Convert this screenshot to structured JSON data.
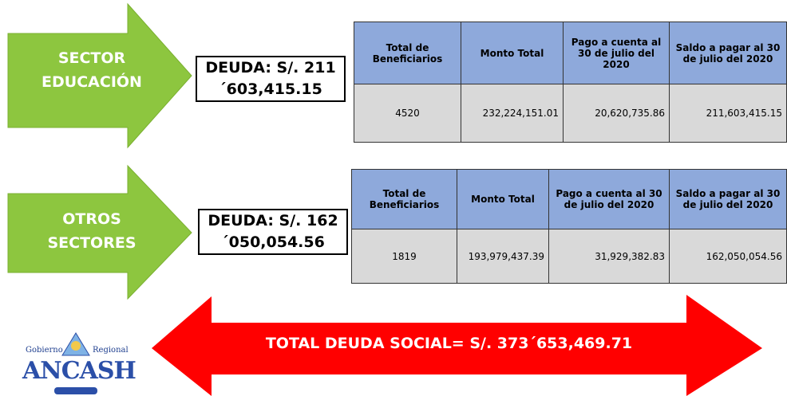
{
  "sections": [
    {
      "arrow_label": "SECTOR EDUCACIÓN",
      "debt": "DEUDA: S/. 211´603,415.15",
      "table": {
        "headers": [
          "Total de Beneficiarios",
          "Monto Total",
          "Pago a cuenta al 30 de julio del 2020",
          "Saldo a pagar al 30 de julio del 2020"
        ],
        "row": [
          "4520",
          "232,224,151.01",
          "20,620,735.86",
          "211,603,415.15"
        ]
      }
    },
    {
      "arrow_label": "OTROS SECTORES",
      "debt": "DEUDA: S/. 162´050,054.56",
      "table": {
        "headers": [
          "Total de Beneficiarios",
          "Monto Total",
          "Pago a cuenta al 30 de julio del 2020",
          "Saldo a pagar al 30 de julio del 2020"
        ],
        "row": [
          "1819",
          "193,979,437.39",
          "31,929,382.83",
          "162,050,054.56"
        ]
      }
    }
  ],
  "total": "TOTAL DEUDA SOCIAL= S/. 373´653,469.71",
  "logo": {
    "left": "Gobierno",
    "right": "Regional",
    "name": "ANCASH"
  }
}
